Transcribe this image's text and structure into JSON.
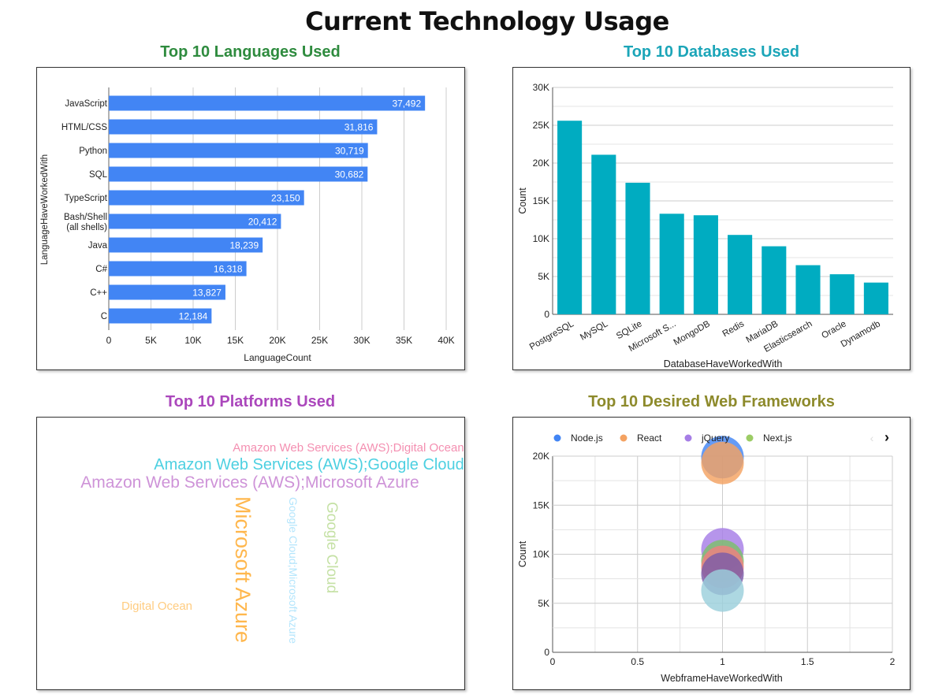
{
  "page_title": "Current Technology Usage",
  "chart_data": [
    {
      "type": "bar",
      "orientation": "horizontal",
      "title": "Top 10 Languages Used",
      "title_color": "#2e8b3e",
      "xlabel": "LanguageCount",
      "ylabel": "LanguageHaveWorkedWith",
      "categories": [
        "JavaScript",
        "HTML/CSS",
        "Python",
        "SQL",
        "TypeScript",
        "Bash/Shell (all shells)",
        "Java",
        "C#",
        "C++",
        "C"
      ],
      "values": [
        37492,
        31816,
        30719,
        30682,
        23150,
        20412,
        18239,
        16318,
        13827,
        12184
      ],
      "value_labels": [
        "37,492",
        "31,816",
        "30,719",
        "30,682",
        "23,150",
        "20,412",
        "18,239",
        "16,318",
        "13,827",
        "12,184"
      ],
      "xlim": [
        0,
        40000
      ],
      "xticks": [
        "0",
        "5K",
        "10K",
        "15K",
        "20K",
        "25K",
        "30K",
        "35K",
        "40K"
      ],
      "bar_color": "#4285f4",
      "grid": true
    },
    {
      "type": "bar",
      "title": "Top 10 Databases Used",
      "title_color": "#1ba5b8",
      "xlabel": "DatabaseHaveWorkedWith",
      "ylabel": "Count",
      "categories": [
        "PostgreSQL",
        "MySQL",
        "SQLite",
        "Microsoft S...",
        "MongoDB",
        "Redis",
        "MariaDB",
        "Elasticsearch",
        "Oracle",
        "Dynamodb"
      ],
      "values": [
        25600,
        21100,
        17400,
        13300,
        13100,
        10500,
        9000,
        6500,
        5300,
        4200
      ],
      "ylim": [
        0,
        30000
      ],
      "yticks": [
        "0",
        "5K",
        "10K",
        "15K",
        "20K",
        "25K",
        "30K"
      ],
      "bar_color": "#00acc1",
      "grid": true
    },
    {
      "type": "wordcloud",
      "title": "Top 10 Platforms Used",
      "title_color": "#ab47bc",
      "words": [
        {
          "text": "Amazon Web Services (AWS);Digital Ocean",
          "color": "#f48fb1"
        },
        {
          "text": "Amazon Web Services (AWS);Google Cloud",
          "color": "#4dd0e1"
        },
        {
          "text": "Amazon Web Services (AWS);Microsoft Azure",
          "color": "#ce93d8"
        },
        {
          "text": "Microsoft Azure",
          "color": "#ffb74d"
        },
        {
          "text": "Google Cloud;Microsoft Azure",
          "color": "#b3e5fc"
        },
        {
          "text": "Google Cloud",
          "color": "#c5e1a5"
        },
        {
          "text": "Digital Ocean",
          "color": "#ffcc80"
        }
      ]
    },
    {
      "type": "scatter",
      "subtype": "bubble",
      "title": "Top 10 Desired Web Frameworks",
      "title_color": "#8d8a2b",
      "xlabel": "WebframeHaveWorkedWith",
      "ylabel": "Count",
      "xlim": [
        0,
        2
      ],
      "ylim": [
        0,
        20000
      ],
      "xticks": [
        "0",
        "0.5",
        "1",
        "1.5",
        "2"
      ],
      "yticks": [
        "0",
        "5K",
        "10K",
        "15K",
        "20K"
      ],
      "legend": [
        "Node.js",
        "React",
        "jQuery",
        "Next.js"
      ],
      "legend_position": "top",
      "series": [
        {
          "name": "Node.js",
          "color": "#4285f4",
          "x": 1,
          "y": 19900
        },
        {
          "name": "React",
          "color": "#f4a261",
          "x": 1,
          "y": 19300
        },
        {
          "color": "#a67ee6",
          "x": 1,
          "y": 10500
        },
        {
          "color": "#7cbf6a",
          "x": 1,
          "y": 9300
        },
        {
          "color": "#f08080",
          "x": 1,
          "y": 8700
        },
        {
          "color": "#7b5ca8",
          "x": 1,
          "y": 8000
        },
        {
          "color": "#9bd0dc",
          "x": 1,
          "y": 6300
        }
      ],
      "grid": true
    }
  ]
}
